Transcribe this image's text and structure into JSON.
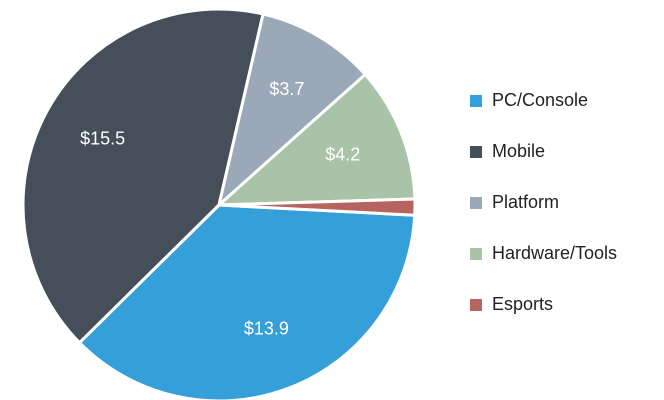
{
  "chart_data": {
    "type": "pie",
    "categories": [
      "PC/Console",
      "Mobile",
      "Platform",
      "Hardware/Tools",
      "Esports"
    ],
    "values": [
      13.9,
      15.5,
      3.7,
      4.2,
      0.5
    ],
    "value_labels": [
      "$13.9",
      "$15.5",
      "$3.7",
      "$4.2",
      null
    ],
    "colors": [
      "#359fd9",
      "#444f5a",
      "#9aa8b8",
      "#a8c3a8",
      "#b5645f"
    ],
    "legend": "right"
  }
}
